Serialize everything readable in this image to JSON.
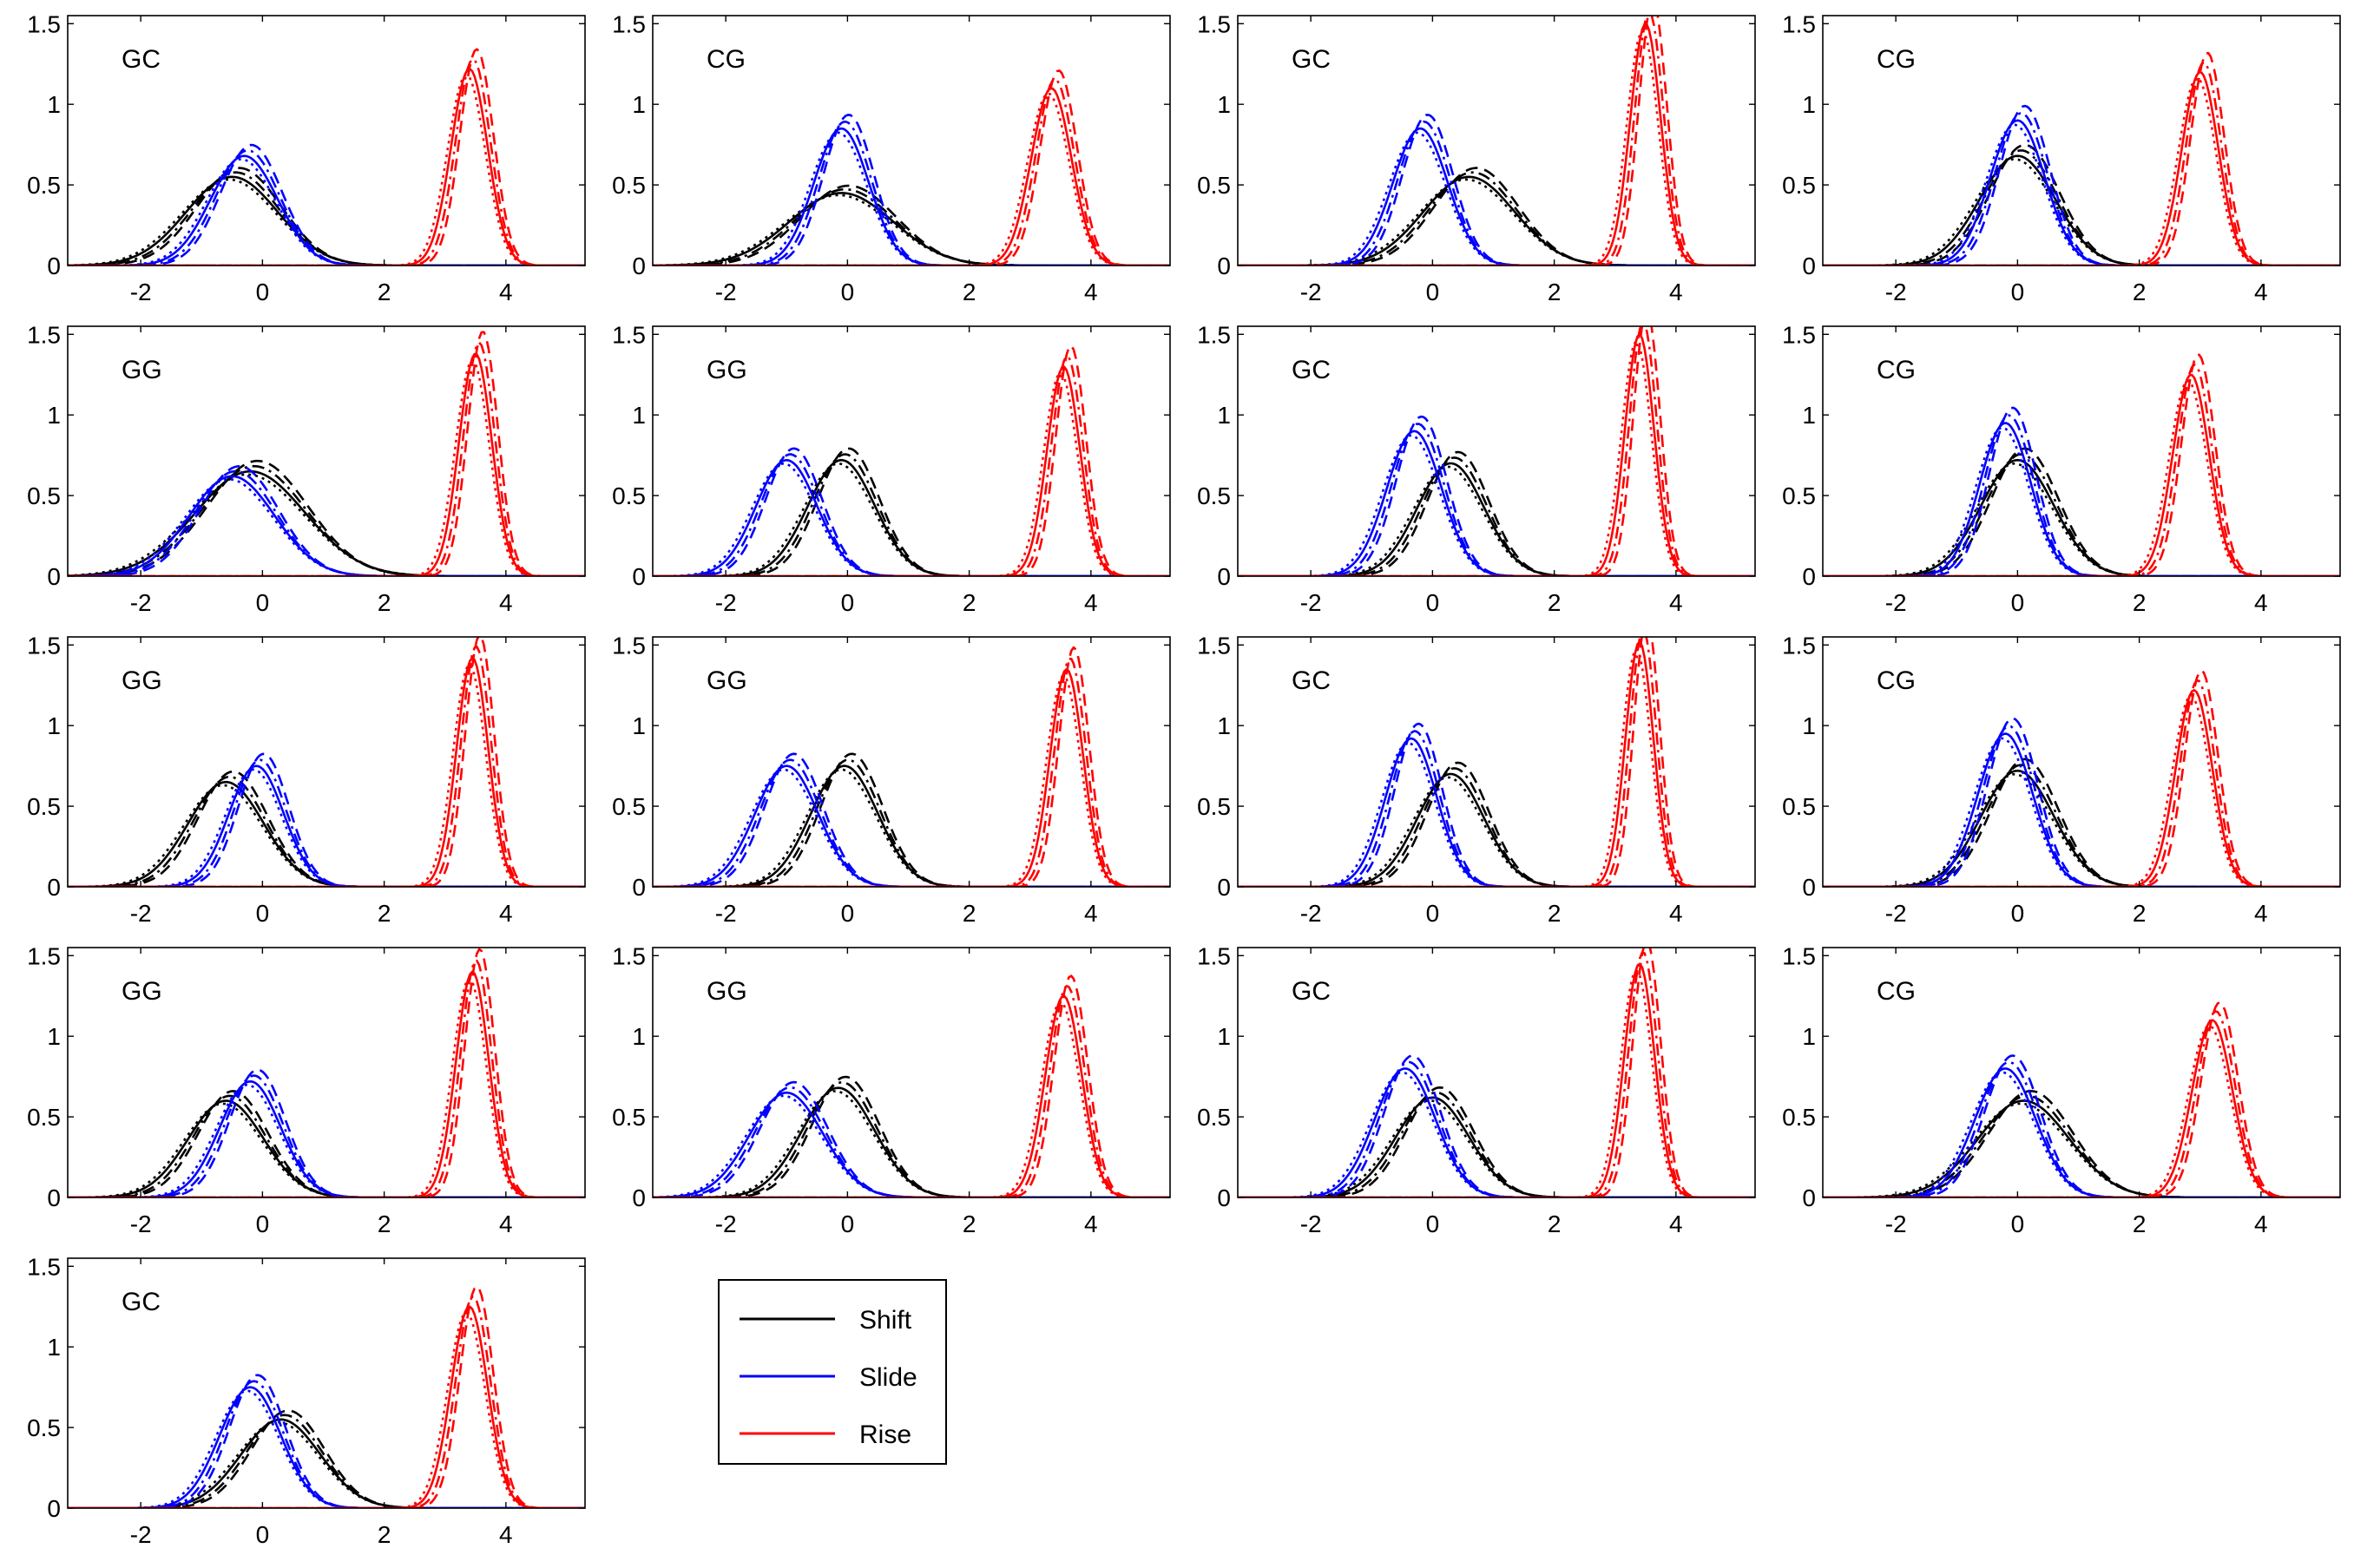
{
  "colors": {
    "shift": "#000000",
    "slide": "#0000ff",
    "rise": "#ff0000"
  },
  "legend": {
    "placement": "bottom-center",
    "entries": [
      {
        "key": "shift",
        "label": "Shift",
        "color": "#000000"
      },
      {
        "key": "slide",
        "label": "Slide",
        "color": "#0000ff"
      },
      {
        "key": "rise",
        "label": "Rise",
        "color": "#ff0000"
      }
    ]
  },
  "chart_data": [
    {
      "type": "line",
      "label": "GC",
      "xlim": [
        -3.2,
        5.3
      ],
      "ylim": [
        0,
        1.55
      ],
      "xticks": [
        -2,
        0,
        2,
        4
      ],
      "yticks": [
        0,
        0.5,
        1,
        1.5
      ],
      "grid": false,
      "series": [
        {
          "key": "shift",
          "curves": [
            {
              "mu": -0.5,
              "sd": 0.75,
              "amp": 0.55
            }
          ]
        },
        {
          "key": "slide",
          "curves": [
            {
              "mu": -0.3,
              "sd": 0.55,
              "amp": 0.68
            }
          ]
        },
        {
          "key": "rise",
          "curves": [
            {
              "mu": 3.4,
              "sd": 0.3,
              "amp": 1.22
            }
          ]
        }
      ]
    },
    {
      "type": "line",
      "label": "CG",
      "xlim": [
        -3.2,
        5.3
      ],
      "ylim": [
        0,
        1.55
      ],
      "xticks": [
        -2,
        0,
        2,
        4
      ],
      "yticks": [
        0,
        0.5,
        1,
        1.5
      ],
      "grid": false,
      "series": [
        {
          "key": "shift",
          "curves": [
            {
              "mu": -0.1,
              "sd": 0.85,
              "amp": 0.45
            }
          ]
        },
        {
          "key": "slide",
          "curves": [
            {
              "mu": -0.1,
              "sd": 0.45,
              "amp": 0.85
            }
          ]
        },
        {
          "key": "rise",
          "curves": [
            {
              "mu": 3.35,
              "sd": 0.33,
              "amp": 1.1
            }
          ]
        }
      ]
    },
    {
      "type": "line",
      "label": "GC",
      "xlim": [
        -3.2,
        5.3
      ],
      "ylim": [
        0,
        1.55
      ],
      "xticks": [
        -2,
        0,
        2,
        4
      ],
      "yticks": [
        0,
        0.5,
        1,
        1.5
      ],
      "grid": false,
      "series": [
        {
          "key": "shift",
          "curves": [
            {
              "mu": 0.6,
              "sd": 0.75,
              "amp": 0.55
            }
          ]
        },
        {
          "key": "slide",
          "curves": [
            {
              "mu": -0.2,
              "sd": 0.45,
              "amp": 0.85
            }
          ]
        },
        {
          "key": "rise",
          "curves": [
            {
              "mu": 3.5,
              "sd": 0.25,
              "amp": 1.5
            }
          ]
        }
      ]
    },
    {
      "type": "line",
      "label": "CG",
      "xlim": [
        -3.2,
        5.3
      ],
      "ylim": [
        0,
        1.55
      ],
      "xticks": [
        -2,
        0,
        2,
        4
      ],
      "yticks": [
        0,
        0.5,
        1,
        1.5
      ],
      "grid": false,
      "series": [
        {
          "key": "shift",
          "curves": [
            {
              "mu": 0.0,
              "sd": 0.62,
              "amp": 0.68
            }
          ]
        },
        {
          "key": "slide",
          "curves": [
            {
              "mu": 0.0,
              "sd": 0.45,
              "amp": 0.9
            }
          ]
        },
        {
          "key": "rise",
          "curves": [
            {
              "mu": 3.0,
              "sd": 0.3,
              "amp": 1.2
            }
          ]
        }
      ]
    },
    {
      "type": "line",
      "label": "GG",
      "xlim": [
        -3.2,
        5.3
      ],
      "ylim": [
        0,
        1.55
      ],
      "xticks": [
        -2,
        0,
        2,
        4
      ],
      "yticks": [
        0,
        0.5,
        1,
        1.5
      ],
      "grid": false,
      "series": [
        {
          "key": "shift",
          "curves": [
            {
              "mu": -0.2,
              "sd": 0.9,
              "amp": 0.65
            }
          ]
        },
        {
          "key": "slide",
          "curves": [
            {
              "mu": -0.5,
              "sd": 0.7,
              "amp": 0.62
            }
          ]
        },
        {
          "key": "rise",
          "curves": [
            {
              "mu": 3.5,
              "sd": 0.27,
              "amp": 1.38
            }
          ]
        }
      ]
    },
    {
      "type": "line",
      "label": "GG",
      "xlim": [
        -3.2,
        5.3
      ],
      "ylim": [
        0,
        1.55
      ],
      "xticks": [
        -2,
        0,
        2,
        4
      ],
      "yticks": [
        0,
        0.5,
        1,
        1.5
      ],
      "grid": false,
      "series": [
        {
          "key": "shift",
          "curves": [
            {
              "mu": -0.1,
              "sd": 0.55,
              "amp": 0.72
            }
          ]
        },
        {
          "key": "slide",
          "curves": [
            {
              "mu": -1.0,
              "sd": 0.5,
              "amp": 0.72
            }
          ]
        },
        {
          "key": "rise",
          "curves": [
            {
              "mu": 3.55,
              "sd": 0.27,
              "amp": 1.3
            }
          ]
        }
      ]
    },
    {
      "type": "line",
      "label": "GC",
      "xlim": [
        -3.2,
        5.3
      ],
      "ylim": [
        0,
        1.55
      ],
      "xticks": [
        -2,
        0,
        2,
        4
      ],
      "yticks": [
        0,
        0.5,
        1,
        1.5
      ],
      "grid": false,
      "series": [
        {
          "key": "shift",
          "curves": [
            {
              "mu": 0.3,
              "sd": 0.55,
              "amp": 0.7
            }
          ]
        },
        {
          "key": "slide",
          "curves": [
            {
              "mu": -0.3,
              "sd": 0.45,
              "amp": 0.9
            }
          ]
        },
        {
          "key": "rise",
          "curves": [
            {
              "mu": 3.4,
              "sd": 0.24,
              "amp": 1.5
            }
          ]
        }
      ]
    },
    {
      "type": "line",
      "label": "CG",
      "xlim": [
        -3.2,
        5.3
      ],
      "ylim": [
        0,
        1.55
      ],
      "xticks": [
        -2,
        0,
        2,
        4
      ],
      "yticks": [
        0,
        0.5,
        1,
        1.5
      ],
      "grid": false,
      "series": [
        {
          "key": "shift",
          "curves": [
            {
              "mu": 0.0,
              "sd": 0.6,
              "amp": 0.72
            }
          ]
        },
        {
          "key": "slide",
          "curves": [
            {
              "mu": -0.2,
              "sd": 0.42,
              "amp": 0.95
            }
          ]
        },
        {
          "key": "rise",
          "curves": [
            {
              "mu": 2.85,
              "sd": 0.3,
              "amp": 1.25
            }
          ]
        }
      ]
    },
    {
      "type": "line",
      "label": "GG",
      "xlim": [
        -3.2,
        5.3
      ],
      "ylim": [
        0,
        1.55
      ],
      "xticks": [
        -2,
        0,
        2,
        4
      ],
      "yticks": [
        0,
        0.5,
        1,
        1.5
      ],
      "grid": false,
      "series": [
        {
          "key": "shift",
          "curves": [
            {
              "mu": -0.6,
              "sd": 0.62,
              "amp": 0.65
            }
          ]
        },
        {
          "key": "slide",
          "curves": [
            {
              "mu": -0.1,
              "sd": 0.45,
              "amp": 0.75
            }
          ]
        },
        {
          "key": "rise",
          "curves": [
            {
              "mu": 3.45,
              "sd": 0.26,
              "amp": 1.42
            }
          ]
        }
      ]
    },
    {
      "type": "line",
      "label": "GG",
      "xlim": [
        -3.2,
        5.3
      ],
      "ylim": [
        0,
        1.55
      ],
      "xticks": [
        -2,
        0,
        2,
        4
      ],
      "yticks": [
        0,
        0.5,
        1,
        1.5
      ],
      "grid": false,
      "series": [
        {
          "key": "shift",
          "curves": [
            {
              "mu": -0.05,
              "sd": 0.55,
              "amp": 0.75
            }
          ]
        },
        {
          "key": "slide",
          "curves": [
            {
              "mu": -1.0,
              "sd": 0.52,
              "amp": 0.75
            }
          ]
        },
        {
          "key": "rise",
          "curves": [
            {
              "mu": 3.6,
              "sd": 0.27,
              "amp": 1.35
            }
          ]
        }
      ]
    },
    {
      "type": "line",
      "label": "GC",
      "xlim": [
        -3.2,
        5.3
      ],
      "ylim": [
        0,
        1.55
      ],
      "xticks": [
        -2,
        0,
        2,
        4
      ],
      "yticks": [
        0,
        0.5,
        1,
        1.5
      ],
      "grid": false,
      "series": [
        {
          "key": "shift",
          "curves": [
            {
              "mu": 0.3,
              "sd": 0.55,
              "amp": 0.7
            }
          ]
        },
        {
          "key": "slide",
          "curves": [
            {
              "mu": -0.35,
              "sd": 0.42,
              "amp": 0.92
            }
          ]
        },
        {
          "key": "rise",
          "curves": [
            {
              "mu": 3.4,
              "sd": 0.23,
              "amp": 1.52
            }
          ]
        }
      ]
    },
    {
      "type": "line",
      "label": "CG",
      "xlim": [
        -3.2,
        5.3
      ],
      "ylim": [
        0,
        1.55
      ],
      "xticks": [
        -2,
        0,
        2,
        4
      ],
      "yticks": [
        0,
        0.5,
        1,
        1.5
      ],
      "grid": false,
      "series": [
        {
          "key": "shift",
          "curves": [
            {
              "mu": 0.0,
              "sd": 0.6,
              "amp": 0.72
            }
          ]
        },
        {
          "key": "slide",
          "curves": [
            {
              "mu": -0.2,
              "sd": 0.45,
              "amp": 0.95
            }
          ]
        },
        {
          "key": "rise",
          "curves": [
            {
              "mu": 2.9,
              "sd": 0.3,
              "amp": 1.22
            }
          ]
        }
      ]
    },
    {
      "type": "line",
      "label": "GG",
      "xlim": [
        -3.2,
        5.3
      ],
      "ylim": [
        0,
        1.55
      ],
      "xticks": [
        -2,
        0,
        2,
        4
      ],
      "yticks": [
        0,
        0.5,
        1,
        1.5
      ],
      "grid": false,
      "series": [
        {
          "key": "shift",
          "curves": [
            {
              "mu": -0.6,
              "sd": 0.62,
              "amp": 0.6
            }
          ]
        },
        {
          "key": "slide",
          "curves": [
            {
              "mu": -0.2,
              "sd": 0.5,
              "amp": 0.72
            }
          ]
        },
        {
          "key": "rise",
          "curves": [
            {
              "mu": 3.45,
              "sd": 0.27,
              "amp": 1.4
            }
          ]
        }
      ]
    },
    {
      "type": "line",
      "label": "GG",
      "xlim": [
        -3.2,
        5.3
      ],
      "ylim": [
        0,
        1.55
      ],
      "xticks": [
        -2,
        0,
        2,
        4
      ],
      "yticks": [
        0,
        0.5,
        1,
        1.5
      ],
      "grid": false,
      "series": [
        {
          "key": "shift",
          "curves": [
            {
              "mu": -0.15,
              "sd": 0.6,
              "amp": 0.68
            }
          ]
        },
        {
          "key": "slide",
          "curves": [
            {
              "mu": -1.0,
              "sd": 0.6,
              "amp": 0.65
            }
          ]
        },
        {
          "key": "rise",
          "curves": [
            {
              "mu": 3.55,
              "sd": 0.3,
              "amp": 1.25
            }
          ]
        }
      ]
    },
    {
      "type": "line",
      "label": "GC",
      "xlim": [
        -3.2,
        5.3
      ],
      "ylim": [
        0,
        1.55
      ],
      "xticks": [
        -2,
        0,
        2,
        4
      ],
      "yticks": [
        0,
        0.5,
        1,
        1.5
      ],
      "grid": false,
      "series": [
        {
          "key": "shift",
          "curves": [
            {
              "mu": 0.0,
              "sd": 0.6,
              "amp": 0.62
            }
          ]
        },
        {
          "key": "slide",
          "curves": [
            {
              "mu": -0.45,
              "sd": 0.5,
              "amp": 0.8
            }
          ]
        },
        {
          "key": "rise",
          "curves": [
            {
              "mu": 3.4,
              "sd": 0.25,
              "amp": 1.45
            }
          ]
        }
      ]
    },
    {
      "type": "line",
      "label": "CG",
      "xlim": [
        -3.2,
        5.3
      ],
      "ylim": [
        0,
        1.55
      ],
      "xticks": [
        -2,
        0,
        2,
        4
      ],
      "yticks": [
        0,
        0.5,
        1,
        1.5
      ],
      "grid": false,
      "series": [
        {
          "key": "shift",
          "curves": [
            {
              "mu": 0.1,
              "sd": 0.75,
              "amp": 0.6
            }
          ]
        },
        {
          "key": "slide",
          "curves": [
            {
              "mu": -0.2,
              "sd": 0.5,
              "amp": 0.8
            }
          ]
        },
        {
          "key": "rise",
          "curves": [
            {
              "mu": 3.2,
              "sd": 0.33,
              "amp": 1.1
            }
          ]
        }
      ]
    },
    {
      "type": "line",
      "label": "GC",
      "xlim": [
        -3.2,
        5.3
      ],
      "ylim": [
        0,
        1.55
      ],
      "xticks": [
        -2,
        0,
        2,
        4
      ],
      "yticks": [
        0,
        0.5,
        1,
        1.5
      ],
      "grid": false,
      "series": [
        {
          "key": "shift",
          "curves": [
            {
              "mu": 0.3,
              "sd": 0.65,
              "amp": 0.55
            }
          ]
        },
        {
          "key": "slide",
          "curves": [
            {
              "mu": -0.2,
              "sd": 0.5,
              "amp": 0.75
            }
          ]
        },
        {
          "key": "rise",
          "curves": [
            {
              "mu": 3.4,
              "sd": 0.3,
              "amp": 1.25
            }
          ]
        }
      ]
    }
  ]
}
